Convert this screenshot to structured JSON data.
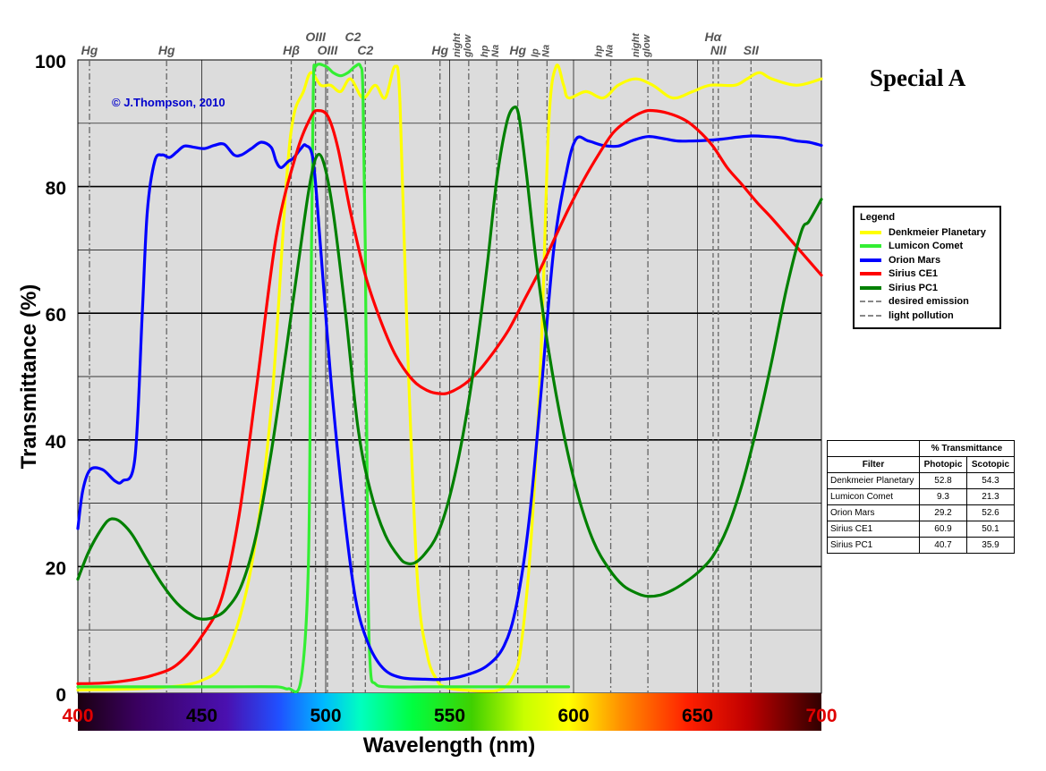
{
  "chart_data": {
    "type": "line",
    "title": "Special A",
    "copyright": "© J.Thompson, 2010",
    "xlabel": "Wavelength (nm)",
    "ylabel": "Transmittance (%)",
    "xlim": [
      400,
      700
    ],
    "ylim": [
      0,
      100
    ],
    "x_ticks": [
      "400",
      "450",
      "500",
      "550",
      "600",
      "650",
      "700"
    ],
    "y_ticks": [
      "0",
      "20",
      "40",
      "60",
      "80",
      "100"
    ],
    "spectrum_bar": true,
    "emission_lines": [
      {
        "label": "Hg",
        "x": 404.7,
        "row": 0,
        "style": "light-pollution"
      },
      {
        "label": "Hg",
        "x": 435.8,
        "row": 0,
        "style": "light-pollution"
      },
      {
        "label": "Hβ",
        "x": 486.1,
        "row": 0,
        "style": "desired"
      },
      {
        "label": "OIII",
        "x": 495.9,
        "row": 1,
        "style": "desired"
      },
      {
        "label": "OIII",
        "x": 500.7,
        "row": 0,
        "style": "desired"
      },
      {
        "label": "C2",
        "x": 511,
        "row": 1,
        "style": "desired"
      },
      {
        "label": "C2",
        "x": 516,
        "row": 0,
        "style": "desired"
      },
      {
        "label": "Hg",
        "x": 546.1,
        "row": 0,
        "style": "light-pollution"
      },
      {
        "label": "night glow",
        "x": 557.7,
        "row": 0,
        "style": "light-pollution",
        "vertical": true
      },
      {
        "label": "hp Na",
        "x": 569,
        "row": 0,
        "style": "light-pollution",
        "vertical": true
      },
      {
        "label": "Hg",
        "x": 577.5,
        "row": 0,
        "style": "light-pollution"
      },
      {
        "label": "lp Na",
        "x": 589.3,
        "row": 0,
        "style": "light-pollution",
        "vertical": true
      },
      {
        "label": "hp Na",
        "x": 615,
        "row": 0,
        "style": "light-pollution",
        "vertical": true
      },
      {
        "label": "night glow",
        "x": 630,
        "row": 0,
        "style": "light-pollution",
        "vertical": true
      },
      {
        "label": "Hα",
        "x": 656.3,
        "row": 1,
        "style": "desired"
      },
      {
        "label": "NII",
        "x": 658.4,
        "row": 0,
        "style": "desired"
      },
      {
        "label": "SII",
        "x": 671.6,
        "row": 0,
        "style": "desired"
      }
    ],
    "legend_title": "Legend",
    "legend_position": "right",
    "series": [
      {
        "name": "Denkmeier Planetary",
        "color": "#ffff00",
        "points": [
          [
            400,
            0.5
          ],
          [
            430,
            0.8
          ],
          [
            450,
            2
          ],
          [
            460,
            6
          ],
          [
            470,
            20
          ],
          [
            478,
            45
          ],
          [
            484,
            80
          ],
          [
            487,
            91
          ],
          [
            491,
            95
          ],
          [
            494,
            98
          ],
          [
            498,
            96
          ],
          [
            502,
            96
          ],
          [
            506,
            95
          ],
          [
            510,
            97
          ],
          [
            515,
            94
          ],
          [
            520,
            96
          ],
          [
            524,
            94
          ],
          [
            528,
            99
          ],
          [
            530,
            93
          ],
          [
            533,
            55
          ],
          [
            537,
            18
          ],
          [
            541,
            6
          ],
          [
            545,
            2
          ],
          [
            548,
            1
          ],
          [
            555,
            0.5
          ],
          [
            570,
            0.5
          ],
          [
            576,
            3
          ],
          [
            579,
            8
          ],
          [
            583,
            25
          ],
          [
            587,
            55
          ],
          [
            590,
            90
          ],
          [
            593,
            99
          ],
          [
            596,
            96
          ],
          [
            598,
            94
          ],
          [
            605,
            95
          ],
          [
            612,
            94
          ],
          [
            618,
            96
          ],
          [
            625,
            97
          ],
          [
            632,
            96
          ],
          [
            640,
            94
          ],
          [
            648,
            95
          ],
          [
            655,
            96
          ],
          [
            665,
            96
          ],
          [
            670,
            97
          ],
          [
            675,
            98
          ],
          [
            680,
            97
          ],
          [
            690,
            96
          ],
          [
            700,
            97
          ]
        ]
      },
      {
        "name": "Lumicon Comet",
        "color": "#33ee33",
        "points": [
          [
            400,
            1
          ],
          [
            420,
            1
          ],
          [
            440,
            1
          ],
          [
            460,
            1
          ],
          [
            480,
            1
          ],
          [
            485,
            0.7
          ],
          [
            490,
            2
          ],
          [
            493,
            20
          ],
          [
            494,
            60
          ],
          [
            495,
            95
          ],
          [
            496,
            99
          ],
          [
            500,
            99
          ],
          [
            503,
            98
          ],
          [
            506,
            97.5
          ],
          [
            509,
            98
          ],
          [
            512,
            99
          ],
          [
            514,
            99
          ],
          [
            515,
            95
          ],
          [
            516,
            70
          ],
          [
            517,
            20
          ],
          [
            518,
            4
          ],
          [
            520,
            1.5
          ],
          [
            525,
            1
          ],
          [
            540,
            1
          ],
          [
            560,
            1
          ],
          [
            580,
            1
          ],
          [
            598,
            1
          ]
        ]
      },
      {
        "name": "Orion Mars",
        "color": "#0000ff",
        "points": [
          [
            400,
            26
          ],
          [
            402,
            32
          ],
          [
            405,
            35.3
          ],
          [
            410,
            35.3
          ],
          [
            415,
            33.5
          ],
          [
            418,
            33.5
          ],
          [
            423,
            37
          ],
          [
            426,
            60
          ],
          [
            428,
            76
          ],
          [
            431,
            84
          ],
          [
            434,
            85
          ],
          [
            437,
            84.6
          ],
          [
            440,
            85.5
          ],
          [
            443,
            86.4
          ],
          [
            447,
            86.2
          ],
          [
            451,
            86
          ],
          [
            455,
            86.5
          ],
          [
            459,
            86.7
          ],
          [
            463,
            85
          ],
          [
            466,
            85
          ],
          [
            470,
            86
          ],
          [
            474,
            87
          ],
          [
            478,
            86.2
          ],
          [
            480,
            84
          ],
          [
            482,
            83
          ],
          [
            485,
            84
          ],
          [
            487,
            84.5
          ],
          [
            490,
            86
          ],
          [
            492,
            86.5
          ],
          [
            495,
            84
          ],
          [
            498,
            70
          ],
          [
            502,
            50
          ],
          [
            507,
            30
          ],
          [
            512,
            15
          ],
          [
            517,
            8
          ],
          [
            523,
            4
          ],
          [
            530,
            2.5
          ],
          [
            540,
            2.2
          ],
          [
            548,
            2.2
          ],
          [
            556,
            2.8
          ],
          [
            565,
            4.3
          ],
          [
            572,
            7.5
          ],
          [
            577,
            14
          ],
          [
            582,
            27
          ],
          [
            587,
            48
          ],
          [
            592,
            70
          ],
          [
            597,
            82
          ],
          [
            601,
            87.5
          ],
          [
            606,
            87.2
          ],
          [
            612,
            86.5
          ],
          [
            618,
            86.4
          ],
          [
            624,
            87.3
          ],
          [
            630,
            87.9
          ],
          [
            636,
            87.6
          ],
          [
            642,
            87.2
          ],
          [
            648,
            87.2
          ],
          [
            654,
            87.3
          ],
          [
            660,
            87.5
          ],
          [
            666,
            87.8
          ],
          [
            672,
            88
          ],
          [
            678,
            87.9
          ],
          [
            684,
            87.7
          ],
          [
            690,
            87.2
          ],
          [
            695,
            87
          ],
          [
            700,
            86.5
          ]
        ]
      },
      {
        "name": "Sirius CE1",
        "color": "#ff0000",
        "points": [
          [
            400,
            1.5
          ],
          [
            410,
            1.6
          ],
          [
            420,
            2
          ],
          [
            430,
            2.8
          ],
          [
            440,
            4.5
          ],
          [
            450,
            9
          ],
          [
            458,
            15
          ],
          [
            465,
            28
          ],
          [
            472,
            48
          ],
          [
            480,
            72
          ],
          [
            488,
            85
          ],
          [
            494,
            91
          ],
          [
            497,
            92
          ],
          [
            501,
            91
          ],
          [
            505,
            86
          ],
          [
            510,
            76
          ],
          [
            516,
            66
          ],
          [
            522,
            59
          ],
          [
            528,
            53.5
          ],
          [
            535,
            49.5
          ],
          [
            541,
            47.8
          ],
          [
            546,
            47.3
          ],
          [
            550,
            47.5
          ],
          [
            556,
            48.8
          ],
          [
            562,
            51
          ],
          [
            568,
            54
          ],
          [
            574,
            57.5
          ],
          [
            580,
            62
          ],
          [
            586,
            66.5
          ],
          [
            592,
            71.5
          ],
          [
            598,
            76.5
          ],
          [
            604,
            81
          ],
          [
            610,
            85
          ],
          [
            616,
            88.5
          ],
          [
            622,
            90.5
          ],
          [
            628,
            91.8
          ],
          [
            632,
            92
          ],
          [
            638,
            91.6
          ],
          [
            645,
            90.5
          ],
          [
            650,
            89
          ],
          [
            656,
            86.5
          ],
          [
            662,
            83
          ],
          [
            668,
            80.3
          ],
          [
            674,
            77.5
          ],
          [
            680,
            75
          ],
          [
            690,
            70.5
          ],
          [
            700,
            66
          ]
        ]
      },
      {
        "name": "Sirius PC1",
        "color": "#008000",
        "points": [
          [
            400,
            18
          ],
          [
            404,
            22
          ],
          [
            408,
            25
          ],
          [
            412,
            27.2
          ],
          [
            415,
            27.5
          ],
          [
            418,
            26.8
          ],
          [
            422,
            25
          ],
          [
            428,
            21
          ],
          [
            434,
            17.2
          ],
          [
            440,
            14.2
          ],
          [
            446,
            12.3
          ],
          [
            450,
            11.7
          ],
          [
            455,
            12
          ],
          [
            460,
            13.3
          ],
          [
            466,
            17
          ],
          [
            472,
            25
          ],
          [
            478,
            38
          ],
          [
            484,
            54
          ],
          [
            489,
            68
          ],
          [
            493,
            79
          ],
          [
            496,
            84.5
          ],
          [
            499,
            84
          ],
          [
            503,
            76
          ],
          [
            508,
            60
          ],
          [
            513,
            42
          ],
          [
            518,
            32
          ],
          [
            524,
            25
          ],
          [
            530,
            21.3
          ],
          [
            533,
            20.5
          ],
          [
            536,
            20.6
          ],
          [
            540,
            22
          ],
          [
            545,
            25
          ],
          [
            550,
            31
          ],
          [
            555,
            40
          ],
          [
            560,
            52
          ],
          [
            565,
            67
          ],
          [
            569,
            81
          ],
          [
            573,
            90
          ],
          [
            576,
            92.5
          ],
          [
            578,
            91
          ],
          [
            581,
            82
          ],
          [
            585,
            68
          ],
          [
            590,
            54
          ],
          [
            596,
            41
          ],
          [
            602,
            31
          ],
          [
            608,
            24
          ],
          [
            614,
            19.8
          ],
          [
            620,
            17
          ],
          [
            626,
            15.7
          ],
          [
            630,
            15.3
          ],
          [
            635,
            15.5
          ],
          [
            640,
            16.3
          ],
          [
            645,
            17.5
          ],
          [
            650,
            19
          ],
          [
            656,
            21.5
          ],
          [
            662,
            26
          ],
          [
            668,
            33
          ],
          [
            674,
            42
          ],
          [
            680,
            52.5
          ],
          [
            686,
            64
          ],
          [
            692,
            73
          ],
          [
            695,
            74.5
          ],
          [
            700,
            78
          ]
        ]
      }
    ],
    "legend_extra": [
      {
        "name": "desired emission",
        "dash": "4,2",
        "color": "#888888"
      },
      {
        "name": "light pollution",
        "dash": "6,2,2,2",
        "color": "#888888"
      }
    ]
  },
  "table": {
    "group_header": "% Transmittance",
    "headers": [
      "Filter",
      "Photopic",
      "Scotopic"
    ],
    "rows": [
      [
        "Denkmeier Planetary",
        "52.8",
        "54.3"
      ],
      [
        "Lumicon Comet",
        "9.3",
        "21.3"
      ],
      [
        "Orion Mars",
        "29.2",
        "52.6"
      ],
      [
        "Sirius CE1",
        "60.9",
        "50.1"
      ],
      [
        "Sirius PC1",
        "40.7",
        "35.9"
      ]
    ]
  }
}
